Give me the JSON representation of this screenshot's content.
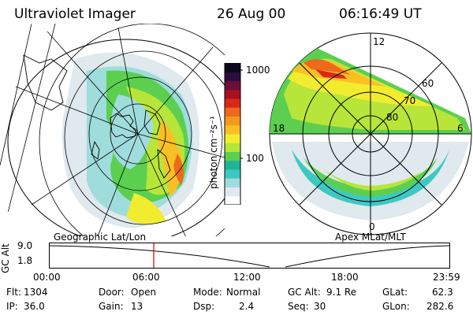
{
  "header": {
    "instrument": "Ultraviolet Imager",
    "date": "26 Aug 00",
    "time": "06:16:49 UT"
  },
  "colorbar": {
    "unit_label": "photon cm⁻²s⁻¹",
    "ticks": [
      "1000",
      "100"
    ],
    "colors": [
      "#ffffff",
      "#dfe9ee",
      "#9fdcdc",
      "#3ec8c2",
      "#1fb49a",
      "#5ccf50",
      "#b8e53a",
      "#f2ec2f",
      "#f9c026",
      "#f39a1e",
      "#ec6a1a",
      "#d9281a",
      "#a8101f",
      "#6a0f3a",
      "#2b0e3d",
      "#0a0a1a"
    ]
  },
  "left_panel": {
    "projection_label": "Geographic Lat/Lon"
  },
  "right_panel": {
    "projection_label": "Apex MLat/MLT",
    "mlt_labels": {
      "top": "12",
      "left": "18",
      "right": "6",
      "bottom": "0"
    },
    "mlat_labels": [
      "60",
      "70",
      "80"
    ]
  },
  "altitude_plot": {
    "ylabel": "GC Alt",
    "yticks": [
      "9.0",
      "1.8"
    ],
    "xticks": [
      "00:00",
      "06:00",
      "12:00",
      "18:00",
      "23:59"
    ],
    "marker_time": "06:16:49"
  },
  "status": {
    "flt_label": "Flt:",
    "flt_value": "1304",
    "ip_label": "IP:",
    "ip_value": "36.0",
    "door_label": "Door:",
    "door_value": "Open",
    "gain_label": "Gain:",
    "gain_value": "13",
    "mode_label": "Mode:",
    "mode_value": "Normal",
    "dsp_label": "Dsp:",
    "dsp_value": "2.4",
    "gcalt_label": "GC Alt:",
    "gcalt_value": "9.1 Re",
    "seq_label": "Seq:",
    "seq_value": "30",
    "glat_label": "GLat:",
    "glat_value": "62.3",
    "glon_label": "GLon:",
    "glon_value": "282.6"
  }
}
